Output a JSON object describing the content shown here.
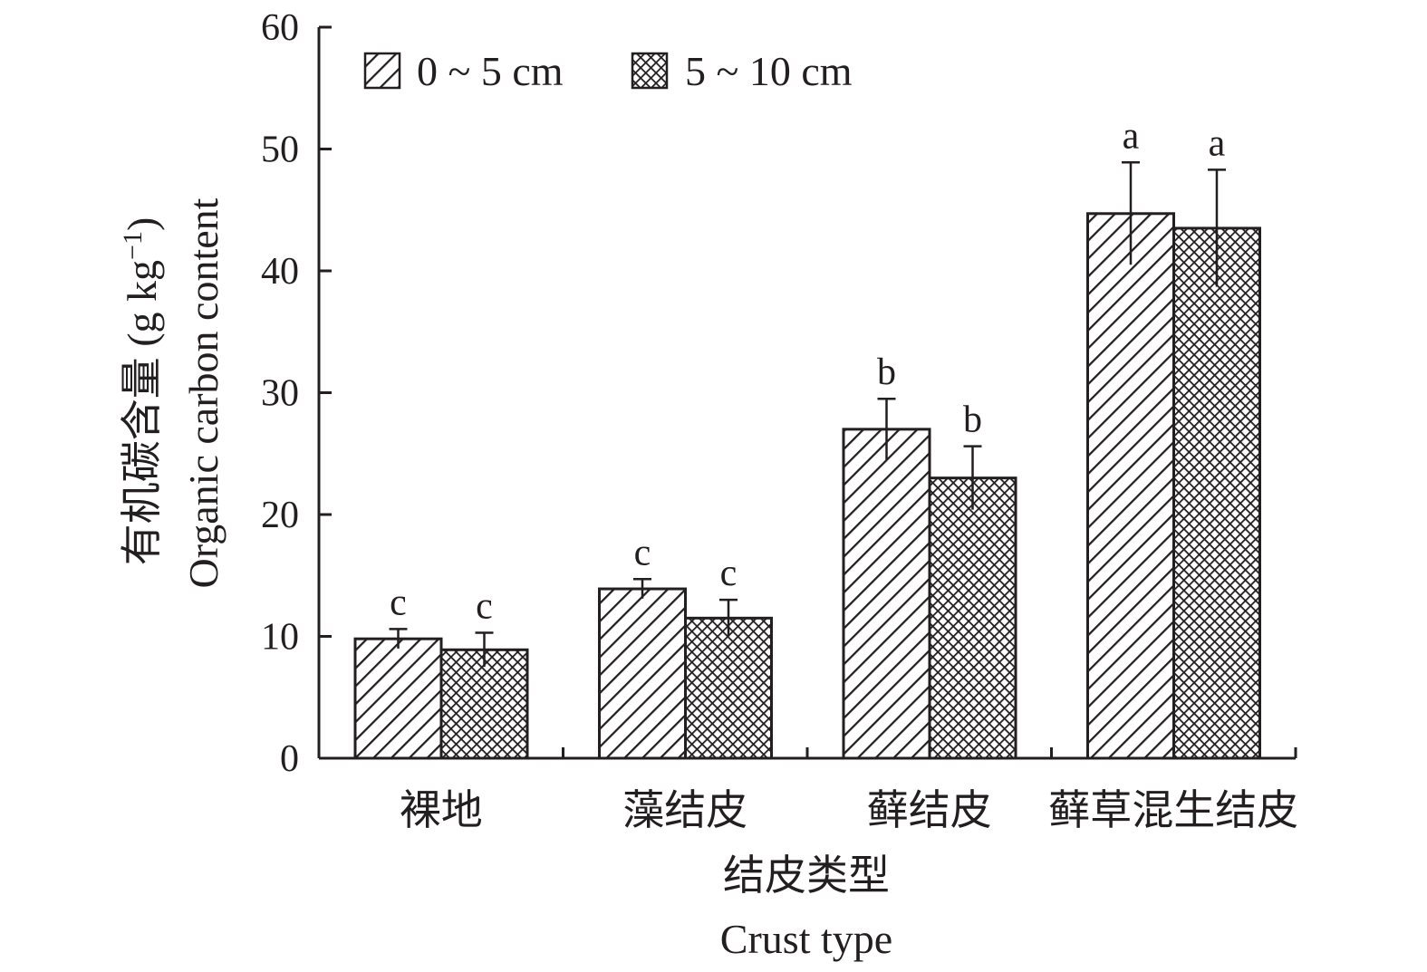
{
  "chart_data": {
    "type": "bar",
    "categories": [
      "裸地",
      "藻结皮",
      "藓结皮",
      "藓草混生结皮"
    ],
    "series": [
      {
        "name": "0 ~ 5 cm",
        "values": [
          9.8,
          13.9,
          27.0,
          44.7
        ],
        "errors": [
          0.8,
          0.8,
          2.5,
          4.2
        ],
        "labels": [
          "c",
          "c",
          "b",
          "a"
        ],
        "pattern": "diagonal-hatch"
      },
      {
        "name": "5 ~ 10 cm",
        "values": [
          8.9,
          11.5,
          23.0,
          43.5
        ],
        "errors": [
          1.4,
          1.5,
          2.6,
          4.8
        ],
        "labels": [
          "c",
          "c",
          "b",
          "a"
        ],
        "pattern": "crosshatch"
      }
    ],
    "ylim": [
      0,
      60
    ],
    "yticks": [
      "0",
      "10",
      "20",
      "30",
      "40",
      "50",
      "60"
    ],
    "ylabel_cn": "有机碳含量 (g kg",
    "ylabel_sup": "−1",
    "ylabel_close": ")",
    "ylabel_en": "Organic  carbon content",
    "xlabel_cn": "结皮类型",
    "xlabel_en": "Crust type",
    "legend_placement": "top-left",
    "grid": false,
    "colors": {
      "ink": "#231f20",
      "background": "#ffffff"
    }
  }
}
